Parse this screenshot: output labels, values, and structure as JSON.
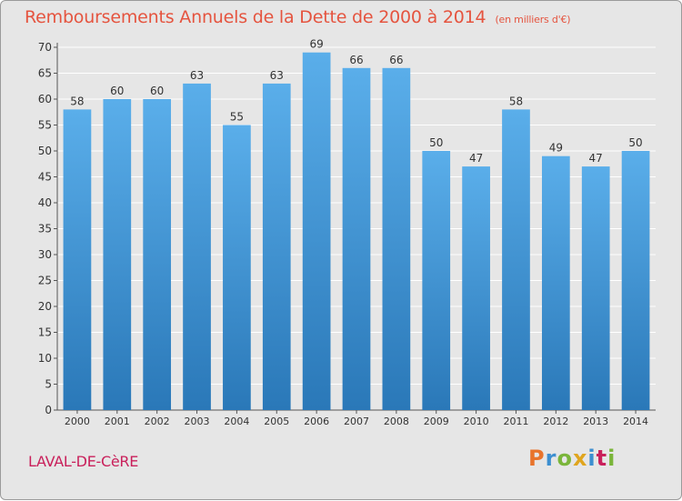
{
  "chart_data": {
    "type": "bar",
    "title": "Remboursements Annuels de la Dette de 2000 à 2014",
    "unit_label": "(en milliers d'€)",
    "categories": [
      "2000",
      "2001",
      "2002",
      "2003",
      "2004",
      "2005",
      "2006",
      "2007",
      "2008",
      "2009",
      "2010",
      "2011",
      "2012",
      "2013",
      "2014"
    ],
    "values": [
      58,
      60,
      60,
      63,
      55,
      63,
      69,
      66,
      66,
      50,
      47,
      58,
      49,
      47,
      50
    ],
    "ylim": [
      0,
      70
    ],
    "yticks": [
      0,
      5,
      10,
      15,
      20,
      25,
      30,
      35,
      40,
      45,
      50,
      55,
      60,
      65,
      70
    ],
    "grid": true,
    "bar_color_top": "#5aaeea",
    "bar_color_bottom": "#2a78b8"
  },
  "commune": "LAVAL-DE-CèRE",
  "logo": {
    "letters": [
      "P",
      "r",
      "o",
      "x",
      "i",
      "t",
      "i"
    ],
    "colors": [
      "#e8742c",
      "#3d8fd0",
      "#7ab53a",
      "#e0a51e",
      "#3d8fd0",
      "#c9205b",
      "#7ab53a"
    ]
  },
  "colors": {
    "title": "#e5543f",
    "commune": "#c9205b",
    "background": "#e6e6e6"
  }
}
